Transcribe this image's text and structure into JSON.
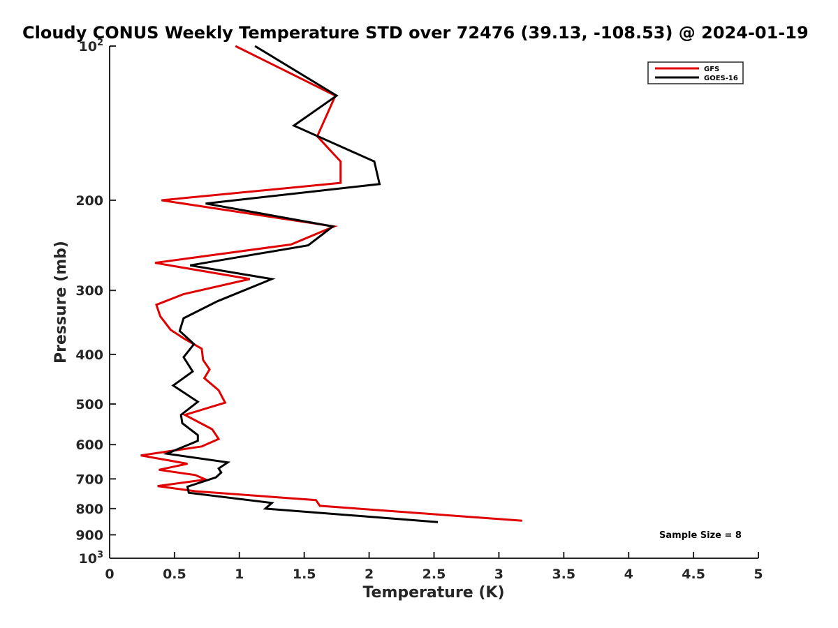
{
  "chart_data": {
    "type": "line",
    "title": "Cloudy CONUS Weekly Temperature STD over 72476 (39.13, -108.53) @ 2024-01-19",
    "xlabel": "Temperature (K)",
    "ylabel": "Pressure (mb)",
    "xlim": [
      0,
      5
    ],
    "ylim": [
      100,
      1000
    ],
    "y_scale": "log",
    "y_reversed": true,
    "x_ticks": [
      "0",
      "0.5",
      "1",
      "1.5",
      "2",
      "2.5",
      "3",
      "3.5",
      "4",
      "4.5",
      "5"
    ],
    "y_ticks": [
      {
        "value": 100,
        "base": "10",
        "exp": "2"
      },
      {
        "value": 200,
        "label": "200"
      },
      {
        "value": 300,
        "label": "300"
      },
      {
        "value": 400,
        "label": "400"
      },
      {
        "value": 500,
        "label": "500"
      },
      {
        "value": 600,
        "label": "600"
      },
      {
        "value": 700,
        "label": "700"
      },
      {
        "value": 800,
        "label": "800"
      },
      {
        "value": 900,
        "label": "900"
      },
      {
        "value": 1000,
        "base": "10",
        "exp": "3"
      }
    ],
    "legend_position": "top-right",
    "annotation": "Sample Size = 8",
    "series": [
      {
        "name": "GFS",
        "color": "#e00000",
        "points": [
          [
            0.97,
            100
          ],
          [
            1.74,
            125
          ],
          [
            1.6,
            150
          ],
          [
            1.78,
            168
          ],
          [
            1.78,
            185
          ],
          [
            0.4,
            200
          ],
          [
            1.73,
            225
          ],
          [
            1.4,
            244
          ],
          [
            0.35,
            265
          ],
          [
            1.08,
            285
          ],
          [
            0.57,
            305
          ],
          [
            0.36,
            320
          ],
          [
            0.39,
            337
          ],
          [
            0.47,
            358
          ],
          [
            0.57,
            372
          ],
          [
            0.71,
            390
          ],
          [
            0.72,
            410
          ],
          [
            0.77,
            428
          ],
          [
            0.73,
            445
          ],
          [
            0.84,
            470
          ],
          [
            0.89,
            497
          ],
          [
            0.58,
            525
          ],
          [
            0.79,
            560
          ],
          [
            0.84,
            585
          ],
          [
            0.71,
            605
          ],
          [
            0.24,
            630
          ],
          [
            0.6,
            654
          ],
          [
            0.38,
            672
          ],
          [
            0.66,
            688
          ],
          [
            0.74,
            702
          ],
          [
            0.37,
            723
          ],
          [
            0.66,
            740
          ],
          [
            1.59,
            770
          ],
          [
            1.62,
            790
          ],
          [
            3.18,
            845
          ]
        ]
      },
      {
        "name": "GOES-16",
        "color": "#000000",
        "points": [
          [
            1.12,
            100
          ],
          [
            1.75,
            125
          ],
          [
            1.42,
            143
          ],
          [
            2.04,
            168
          ],
          [
            2.08,
            186
          ],
          [
            0.74,
            203
          ],
          [
            1.72,
            225
          ],
          [
            1.53,
            245
          ],
          [
            0.62,
            268
          ],
          [
            1.25,
            285
          ],
          [
            0.83,
            315
          ],
          [
            0.57,
            340
          ],
          [
            0.54,
            360
          ],
          [
            0.65,
            382
          ],
          [
            0.57,
            405
          ],
          [
            0.64,
            432
          ],
          [
            0.49,
            460
          ],
          [
            0.68,
            495
          ],
          [
            0.55,
            525
          ],
          [
            0.56,
            545
          ],
          [
            0.68,
            575
          ],
          [
            0.68,
            590
          ],
          [
            0.44,
            625
          ],
          [
            0.91,
            650
          ],
          [
            0.84,
            668
          ],
          [
            0.86,
            680
          ],
          [
            0.82,
            695
          ],
          [
            0.6,
            725
          ],
          [
            0.61,
            745
          ],
          [
            1.25,
            780
          ],
          [
            1.2,
            800
          ],
          [
            2.53,
            850
          ]
        ]
      }
    ]
  }
}
